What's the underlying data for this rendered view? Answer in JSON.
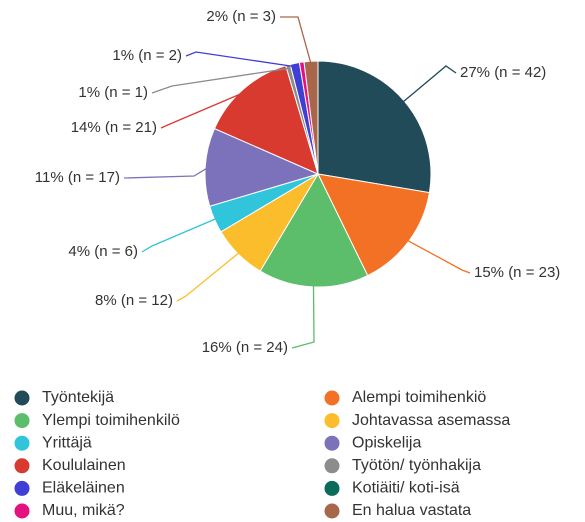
{
  "chart_data": {
    "type": "pie",
    "categories": [
      "Työntekijä",
      "Alempi toimihenkiö",
      "Ylempi toimihenkilö",
      "Johtavassa asemassa",
      "Yrittäjä",
      "Opiskelija",
      "Koululainen",
      "Työtön/ työnhakija",
      "Eläkeläinen",
      "Kotiäiti/ koti-isä",
      "Muu, mikä?",
      "En halua vastata"
    ],
    "values": [
      42,
      23,
      24,
      12,
      6,
      17,
      21,
      1,
      2,
      0,
      1,
      3
    ],
    "value_labels": [
      "27% (n = 42)",
      "15% (n = 23)",
      "16% (n = 24)",
      "8% (n = 12)",
      "4% (n = 6)",
      "11% (n = 17)",
      "14% (n = 21)",
      "1% (n = 1)",
      "1% (n = 2)",
      null,
      null,
      "2% (n = 3)"
    ],
    "colors": [
      "#224b5a",
      "#f37124",
      "#5cbd6a",
      "#fbbd2b",
      "#31c5dc",
      "#7b72bb",
      "#d93a30",
      "#8c8c8c",
      "#3f3fd6",
      "#0b6b5a",
      "#e3127f",
      "#a8674a"
    ]
  }
}
